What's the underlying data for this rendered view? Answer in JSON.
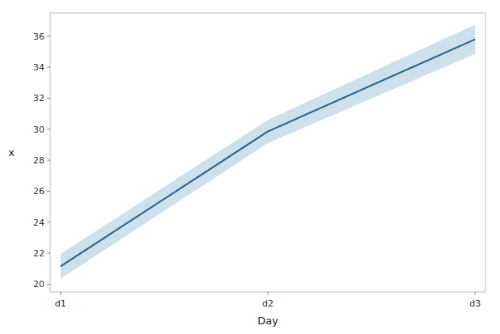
{
  "chart_data": {
    "type": "line",
    "categories": [
      "d1",
      "d2",
      "d3"
    ],
    "xlabel": "Day",
    "ylabel": "x",
    "ylim": [
      19.5,
      37.5
    ],
    "yticks": [
      20,
      22,
      24,
      26,
      28,
      30,
      32,
      34,
      36
    ],
    "grid": false,
    "series": [
      {
        "type": "band",
        "color": "#aacde0",
        "lower": [
          20.35,
          29.1,
          34.85
        ],
        "upper": [
          21.95,
          30.6,
          36.75
        ]
      },
      {
        "type": "line",
        "color": "#2c5f8a",
        "values": [
          21.15,
          29.85,
          35.8
        ]
      }
    ]
  }
}
